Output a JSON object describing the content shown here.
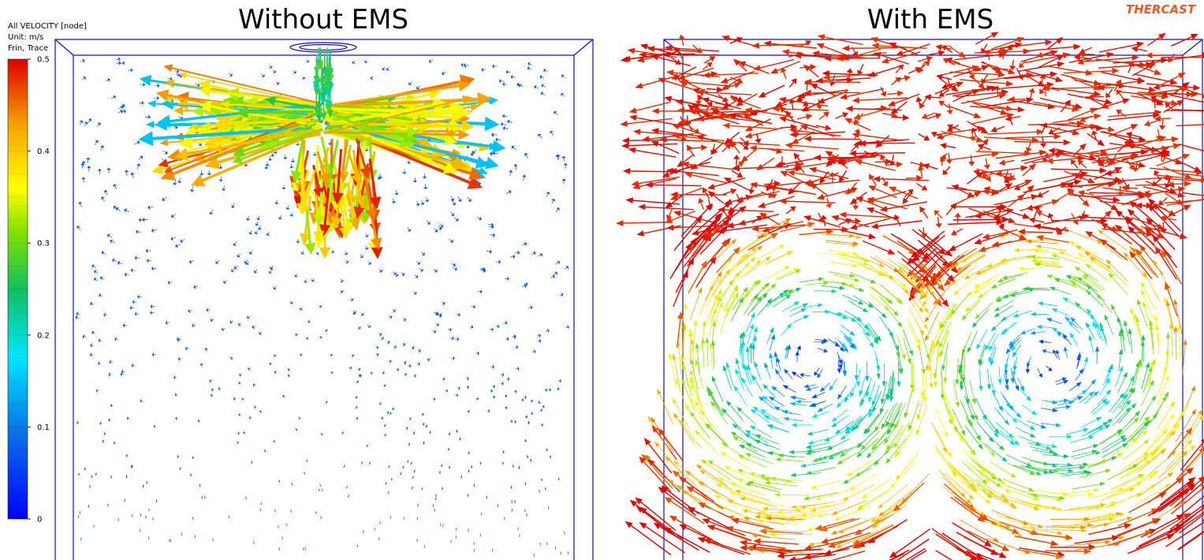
{
  "panels": [
    {
      "title": "Without EMS"
    },
    {
      "title": "With EMS"
    }
  ],
  "legend": {
    "title": "All VELOCITY [node]",
    "unit": "Unit: m/s",
    "mode": "Frin, Trace",
    "ticks": [
      0,
      0.1,
      0.2,
      0.3,
      0.4,
      0.5
    ]
  },
  "logo": "THERCAST"
}
